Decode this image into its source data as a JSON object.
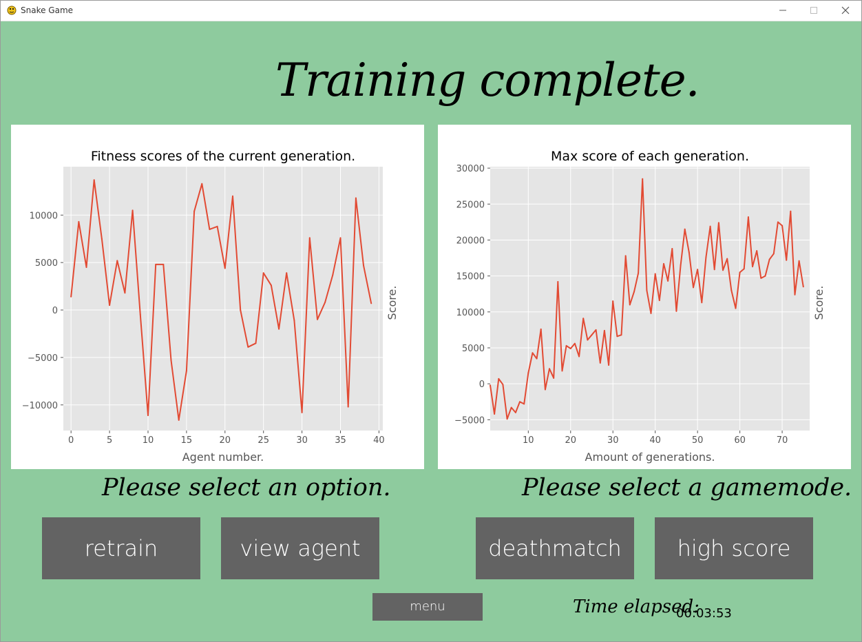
{
  "window": {
    "title": "Snake Game"
  },
  "headline": "Training complete.",
  "chart_data": [
    {
      "type": "line",
      "title": "Fitness scores of the current generation.",
      "xlabel": "Agent number.",
      "ylabel": "Score.",
      "xlim": [
        -1,
        40.5
      ],
      "ylim": [
        -12700,
        15100
      ],
      "x_ticks": [
        0,
        5,
        10,
        15,
        20,
        25,
        30,
        35,
        40
      ],
      "y_ticks": [
        -10000,
        -5000,
        0,
        5000,
        10000
      ],
      "y_tick_labels": [
        "−10000",
        "−5000",
        "0",
        "5000",
        "10000"
      ],
      "grid": true,
      "color": "#e24a33",
      "series": [
        {
          "x": [
            0,
            1,
            2,
            3,
            4,
            5,
            6,
            7,
            8,
            9,
            10,
            11,
            12,
            13,
            14,
            15,
            16,
            17,
            18,
            19,
            20,
            21,
            22,
            23,
            24,
            25,
            26,
            27,
            28,
            29,
            30,
            31,
            32,
            33,
            34,
            35,
            36,
            37,
            38,
            39
          ],
          "values": [
            1400,
            9300,
            4500,
            13700,
            7500,
            500,
            5200,
            1800,
            10500,
            -500,
            -11100,
            4800,
            4800,
            -5300,
            -11600,
            -6400,
            10400,
            13300,
            8500,
            8800,
            4400,
            12000,
            0,
            -3900,
            -3500,
            3900,
            2600,
            -2000,
            3900,
            -1100,
            -10800,
            7600,
            -1000,
            800,
            3700,
            7600,
            -10200,
            11800,
            4700,
            700
          ]
        }
      ]
    },
    {
      "type": "line",
      "title": "Max score of each generation.",
      "xlabel": "Amount of generations.",
      "ylabel": "Score.",
      "xlim": [
        1,
        76.5
      ],
      "ylim": [
        -6500,
        30200
      ],
      "x_ticks": [
        10,
        20,
        30,
        40,
        50,
        60,
        70
      ],
      "y_ticks": [
        -5000,
        0,
        5000,
        10000,
        15000,
        20000,
        25000,
        30000
      ],
      "y_tick_labels": [
        "−5000",
        "0",
        "5000",
        "10000",
        "15000",
        "20000",
        "25000",
        "30000"
      ],
      "grid": true,
      "color": "#e24a33",
      "series": [
        {
          "x": [
            1,
            2,
            3,
            4,
            5,
            6,
            7,
            8,
            9,
            10,
            11,
            12,
            13,
            14,
            15,
            16,
            17,
            18,
            19,
            20,
            21,
            22,
            23,
            24,
            25,
            26,
            27,
            28,
            29,
            30,
            31,
            32,
            33,
            34,
            35,
            36,
            37,
            38,
            39,
            40,
            41,
            42,
            43,
            44,
            45,
            46,
            47,
            48,
            49,
            50,
            51,
            52,
            53,
            54,
            55,
            56,
            57,
            58,
            59,
            60,
            61,
            62,
            63,
            64,
            65,
            66,
            67,
            68,
            69,
            70,
            71,
            72,
            73,
            74,
            75
          ],
          "values": [
            -200,
            -4200,
            700,
            -100,
            -4900,
            -3300,
            -4000,
            -2500,
            -2800,
            1500,
            4300,
            3500,
            7600,
            -800,
            2100,
            800,
            14200,
            1800,
            5300,
            4900,
            5600,
            3800,
            9100,
            6100,
            6800,
            7500,
            2900,
            7400,
            2600,
            11500,
            6600,
            6800,
            17800,
            11000,
            12800,
            15400,
            28500,
            13000,
            9800,
            15300,
            11600,
            16700,
            14300,
            18800,
            10100,
            16500,
            21500,
            18300,
            13400,
            15900,
            11300,
            17600,
            21900,
            15900,
            22400,
            15800,
            17400,
            13000,
            10500,
            15500,
            16000,
            23200,
            16300,
            18500,
            14700,
            15000,
            17300,
            18100,
            22500,
            22000,
            17200,
            24000,
            12400,
            17100,
            13500
          ]
        }
      ]
    }
  ],
  "left_section": {
    "label": "Please select an option.",
    "buttons": [
      "retrain",
      "view agent"
    ]
  },
  "right_section": {
    "label": "Please select a gamemode.",
    "buttons": [
      "deathmatch",
      "high score"
    ]
  },
  "menu_button": "menu",
  "time": {
    "label": "Time elapsed:",
    "value": "00:03:53"
  },
  "colors": {
    "background": "#8ecb9e",
    "button": "#636363",
    "plot_area": "#e5e5e5",
    "line": "#e24a33"
  },
  "icons": {
    "app": "snake-icon",
    "minimize": "minimize-icon",
    "maximize": "maximize-icon",
    "close": "close-icon"
  }
}
